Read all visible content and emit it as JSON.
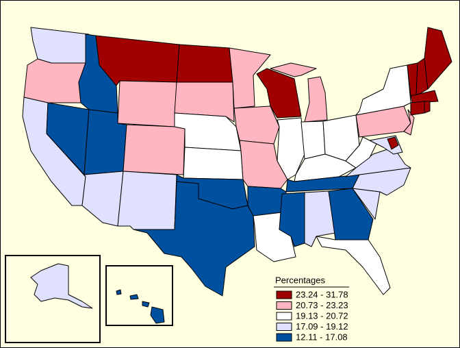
{
  "legend": {
    "title": "Percentages",
    "items": [
      {
        "label": "23.24 - 31.78",
        "color": "#a00000"
      },
      {
        "label": "20.73 - 23.23",
        "color": "#ffb6c1"
      },
      {
        "label": "19.13 - 20.72",
        "color": "#ffffff"
      },
      {
        "label": "17.09 - 19.12",
        "color": "#e0e0ff"
      },
      {
        "label": "12.11 - 17.08",
        "color": "#0050a0"
      }
    ]
  }
}
